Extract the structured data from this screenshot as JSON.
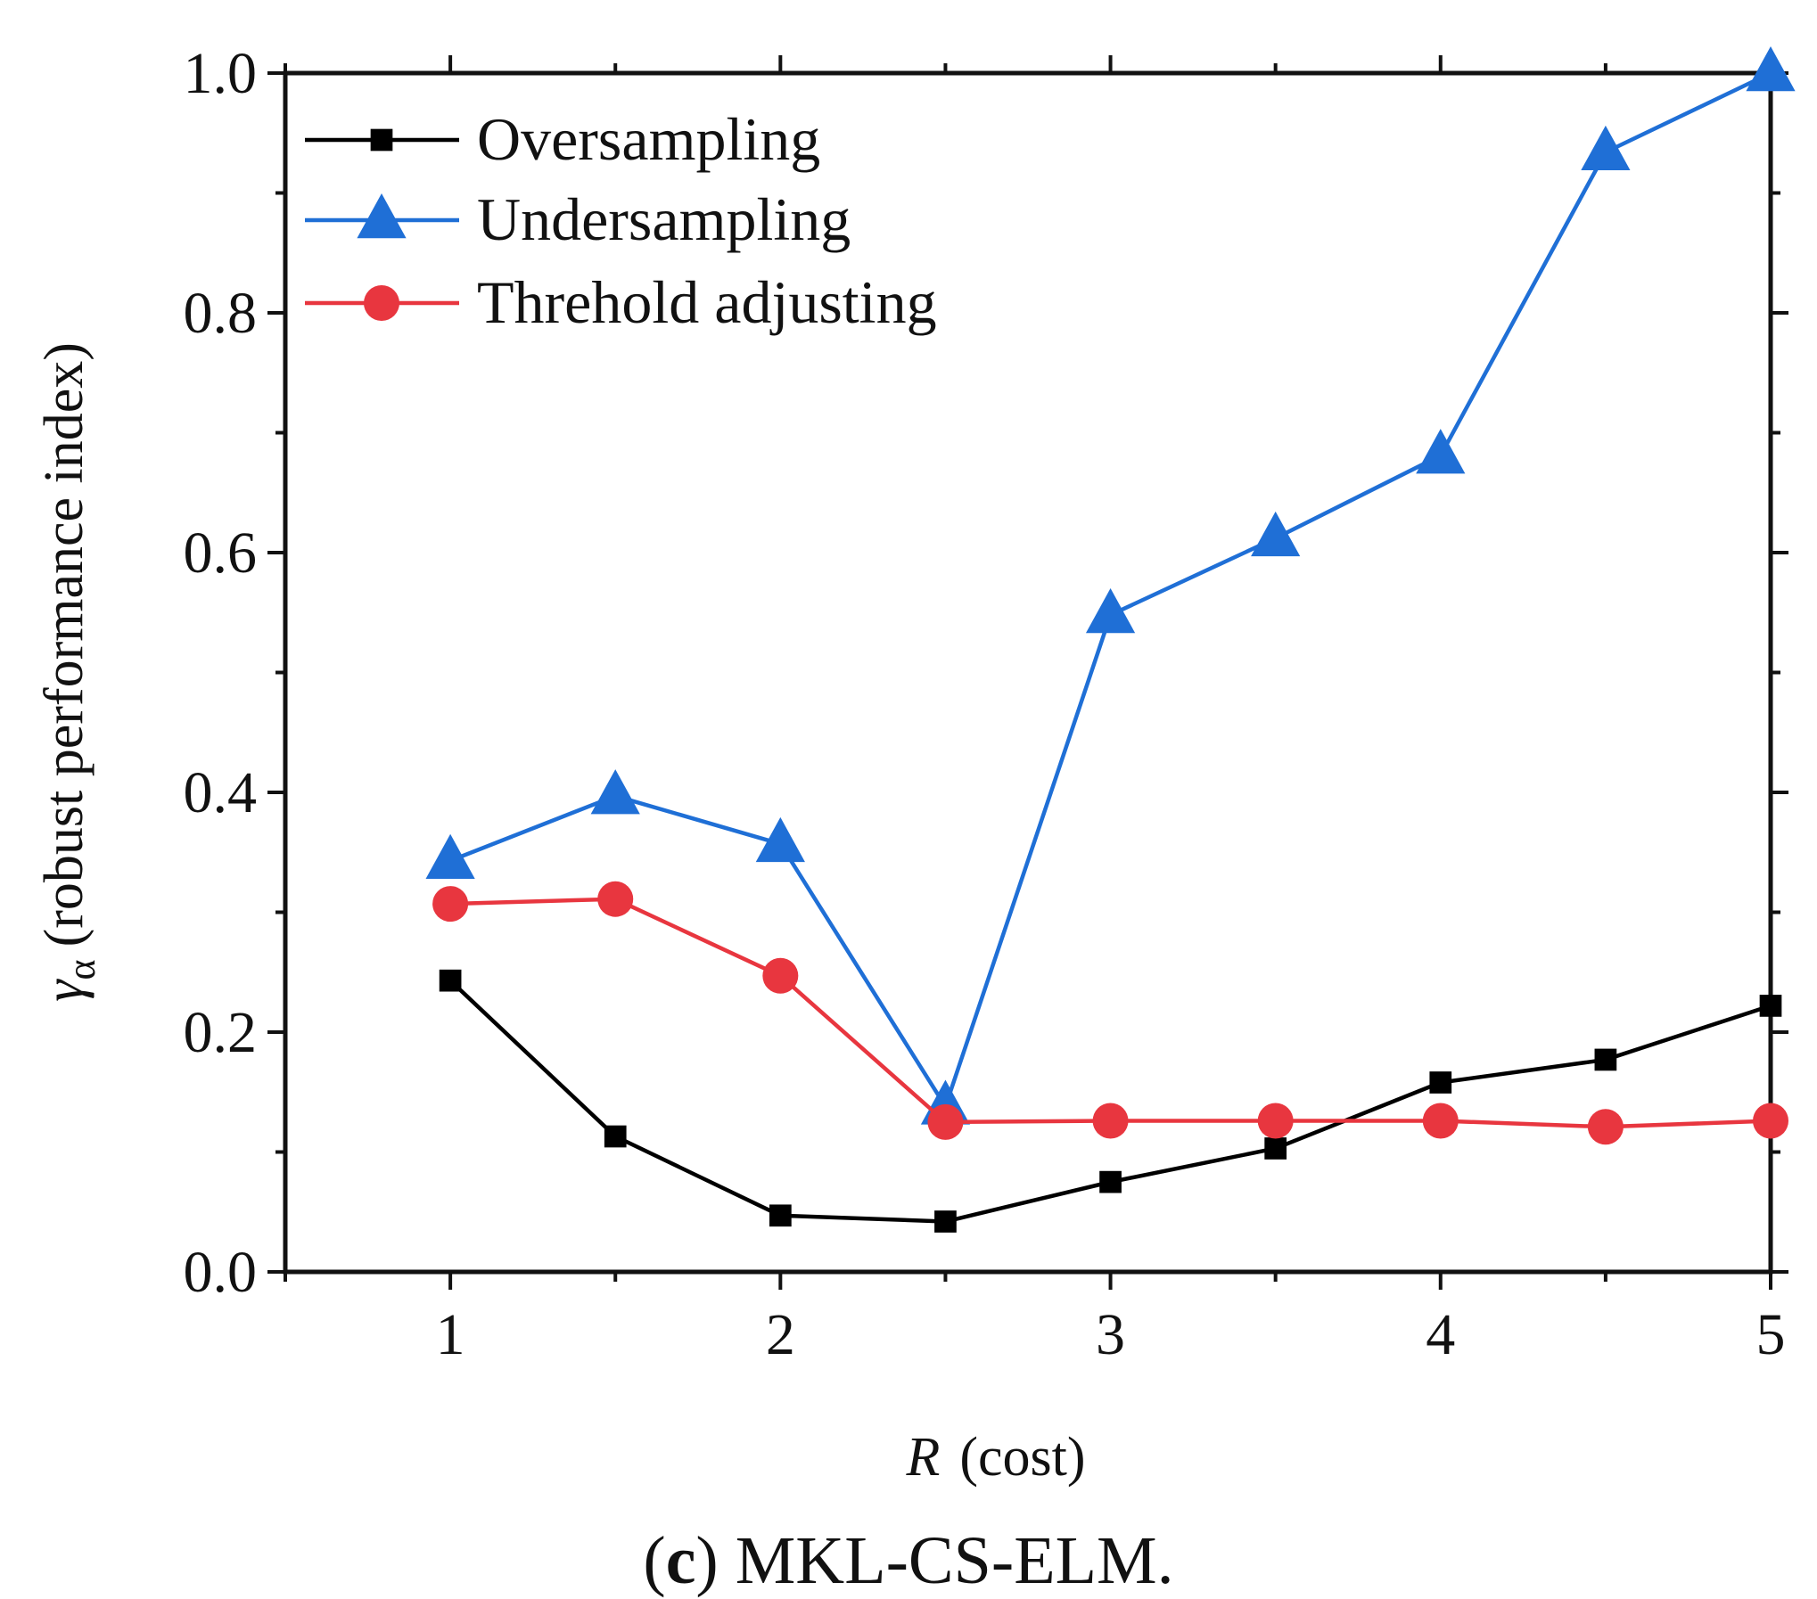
{
  "chart_data": {
    "type": "line",
    "title": "",
    "xlabel": {
      "var": "R",
      "text": "(cost)"
    },
    "ylabel": {
      "var": "γ",
      "sub": "α",
      "text": "(robust performance index)"
    },
    "xlim": [
      0.5,
      5
    ],
    "ylim": [
      0,
      1.0
    ],
    "x": [
      1,
      1.5,
      2,
      2.5,
      3,
      3.5,
      4,
      4.5,
      5
    ],
    "xticks": [
      1,
      2,
      3,
      4,
      5
    ],
    "xtick_labels": [
      "1",
      "2",
      "3",
      "4",
      "5"
    ],
    "yticks": [
      0.0,
      0.2,
      0.4,
      0.6,
      0.8,
      1.0
    ],
    "ytick_labels": [
      "0.0",
      "0.2",
      "0.4",
      "0.6",
      "0.8",
      "1.0"
    ],
    "grid": false,
    "legend_position": "top-left",
    "series": [
      {
        "name": "Oversampling",
        "color": "#000000",
        "marker": "square",
        "values": [
          0.243,
          0.113,
          0.047,
          0.042,
          0.075,
          0.103,
          0.158,
          0.177,
          0.222
        ]
      },
      {
        "name": "Undersampling",
        "color": "#1f6fd6",
        "marker": "triangle",
        "values": [
          0.343,
          0.397,
          0.357,
          0.138,
          0.548,
          0.612,
          0.681,
          0.934,
          1.0
        ]
      },
      {
        "name": "Threhold adjusting",
        "color": "#e8363f",
        "marker": "circle",
        "values": [
          0.307,
          0.311,
          0.247,
          0.125,
          0.126,
          0.126,
          0.126,
          0.121,
          0.126
        ]
      }
    ],
    "caption": {
      "label": "c",
      "text": "MKL-CS-ELM."
    }
  }
}
